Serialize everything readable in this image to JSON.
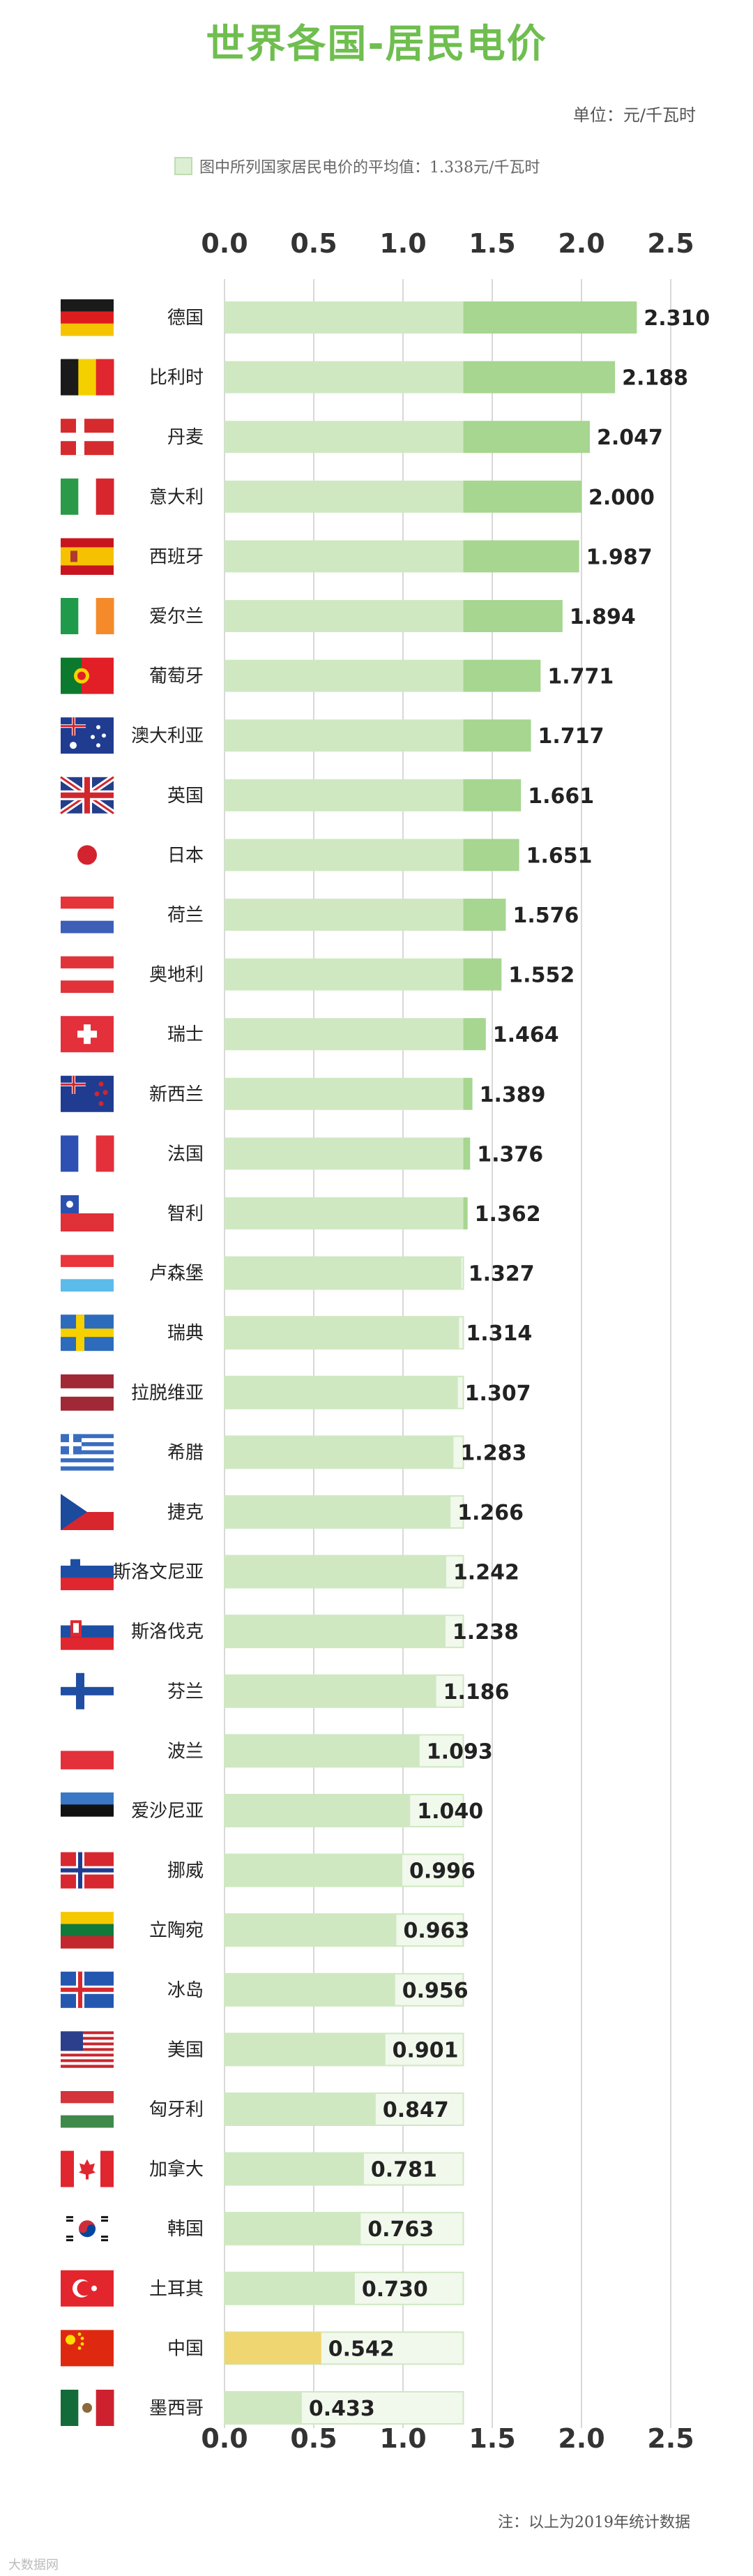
{
  "title": "世界各国-居民电价",
  "unit": "单位：元/千瓦时",
  "legend_text": "图中所列国家居民电价的平均值：1.338元/千瓦时",
  "footnote": "注：以上为2019年统计数据",
  "watermark": "大数据网",
  "colors": {
    "title": "#6fbe4f",
    "bar_base": "#cfe8c1",
    "bar_above": "#a6d690",
    "bar_avg_outline": "#cfe8c1",
    "bar_avg_fill": "#f1f8ec",
    "bar_china": "#f0d670",
    "grid": "#d8d8d8"
  },
  "chart_data": {
    "type": "bar",
    "orientation": "horizontal",
    "average": 1.338,
    "xlim": [
      0,
      2.5
    ],
    "xticks": [
      "0.0",
      "0.5",
      "1.0",
      "1.5",
      "2.0",
      "2.5"
    ],
    "grid": true,
    "categories": [
      "德国",
      "比利时",
      "丹麦",
      "意大利",
      "西班牙",
      "爱尔兰",
      "葡萄牙",
      "澳大利亚",
      "英国",
      "日本",
      "荷兰",
      "奥地利",
      "瑞士",
      "新西兰",
      "法国",
      "智利",
      "卢森堡",
      "瑞典",
      "拉脱维亚",
      "希腊",
      "捷克",
      "斯洛文尼亚",
      "斯洛伐克",
      "芬兰",
      "波兰",
      "爱沙尼亚",
      "挪威",
      "立陶宛",
      "冰岛",
      "美国",
      "匈牙利",
      "加拿大",
      "韩国",
      "土耳其",
      "中国",
      "墨西哥"
    ],
    "values": [
      2.31,
      2.188,
      2.047,
      2.0,
      1.987,
      1.894,
      1.771,
      1.717,
      1.661,
      1.651,
      1.576,
      1.552,
      1.464,
      1.389,
      1.376,
      1.362,
      1.327,
      1.314,
      1.307,
      1.283,
      1.266,
      1.242,
      1.238,
      1.186,
      1.093,
      1.04,
      0.996,
      0.963,
      0.956,
      0.901,
      0.847,
      0.781,
      0.763,
      0.73,
      0.542,
      0.433
    ],
    "value_labels": [
      "2.310",
      "2.188",
      "2.047",
      "2.000",
      "1.987",
      "1.894",
      "1.771",
      "1.717",
      "1.661",
      "1.651",
      "1.576",
      "1.552",
      "1.464",
      "1.389",
      "1.376",
      "1.362",
      "1.327",
      "1.314",
      "1.307",
      "1.283",
      "1.266",
      "1.242",
      "1.238",
      "1.186",
      "1.093",
      "1.040",
      "0.996",
      "0.963",
      "0.956",
      "0.901",
      "0.847",
      "0.781",
      "0.763",
      "0.730",
      "0.542",
      "0.433"
    ],
    "highlight": "中国",
    "flags": [
      "germany-flag-icon",
      "belgium-flag-icon",
      "denmark-flag-icon",
      "italy-flag-icon",
      "spain-flag-icon",
      "ireland-flag-icon",
      "portugal-flag-icon",
      "australia-flag-icon",
      "uk-flag-icon",
      "japan-flag-icon",
      "netherlands-flag-icon",
      "austria-flag-icon",
      "switzerland-flag-icon",
      "new-zealand-flag-icon",
      "france-flag-icon",
      "chile-flag-icon",
      "luxembourg-flag-icon",
      "sweden-flag-icon",
      "latvia-flag-icon",
      "greece-flag-icon",
      "czech-flag-icon",
      "slovenia-flag-icon",
      "slovakia-flag-icon",
      "finland-flag-icon",
      "poland-flag-icon",
      "estonia-flag-icon",
      "norway-flag-icon",
      "lithuania-flag-icon",
      "iceland-flag-icon",
      "usa-flag-icon",
      "hungary-flag-icon",
      "canada-flag-icon",
      "korea-flag-icon",
      "turkey-flag-icon",
      "china-flag-icon",
      "mexico-flag-icon"
    ]
  }
}
